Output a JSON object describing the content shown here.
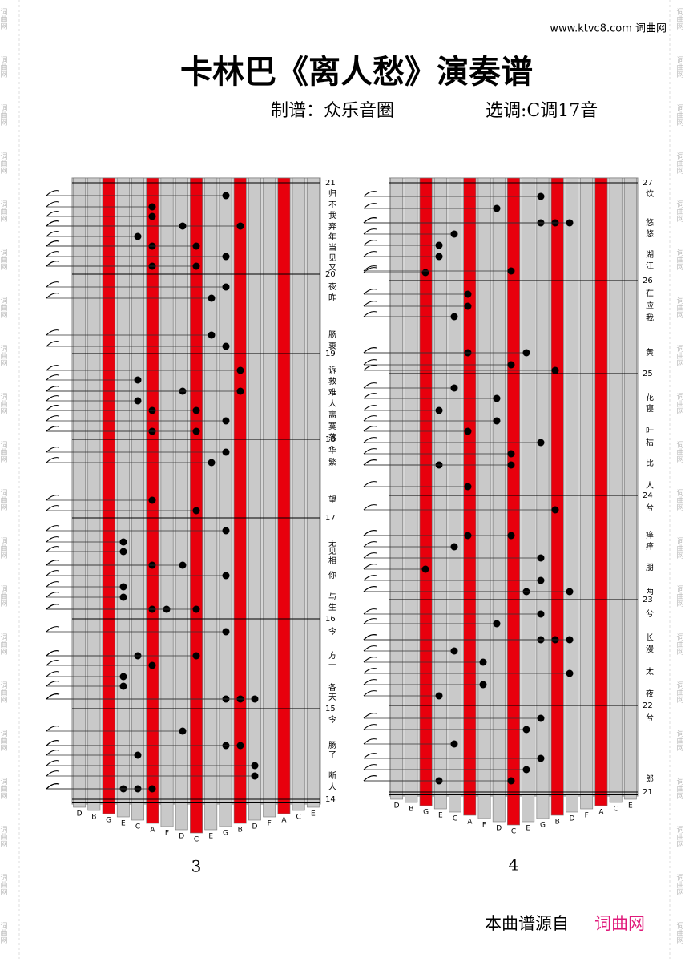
{
  "header": {
    "site": "www.ktvc8.com 词曲网",
    "title": "卡林巴《离人愁》演奏谱",
    "arranger": "制谱：众乐音圈",
    "key": "选调:C调17音"
  },
  "watermark": "词曲网",
  "panels": [
    {
      "keys": [
        "D",
        "B",
        "G",
        "E",
        "C",
        "A",
        "F",
        "D",
        "C",
        "E",
        "G",
        "B",
        "D",
        "F",
        "A",
        "C",
        "E"
      ],
      "measures": [
        "21",
        "20",
        "19",
        "18",
        "17",
        "16",
        "15",
        "14"
      ],
      "lyrics": [
        "归",
        "不",
        "我",
        "弃",
        "年",
        "当",
        "见",
        "又",
        "夜",
        "昨",
        "肠",
        "衷",
        "诉",
        "救",
        "难",
        "人",
        "离",
        "寞",
        "落",
        "华",
        "繁",
        "望",
        "无",
        "见",
        "相",
        "你",
        "与",
        "生",
        "今",
        "方",
        "一",
        "各",
        "天",
        "今",
        "肠",
        "了",
        "断",
        "人"
      ],
      "page": "3"
    },
    {
      "keys": [
        "D",
        "B",
        "G",
        "E",
        "C",
        "A",
        "F",
        "D",
        "C",
        "E",
        "G",
        "B",
        "D",
        "F",
        "A",
        "C",
        "E"
      ],
      "measures": [
        "27",
        "26",
        "25",
        "24",
        "23",
        "22",
        "21"
      ],
      "lyrics": [
        "饮",
        "悠",
        "悠",
        "湖",
        "江",
        "在",
        "应",
        "我",
        "黄",
        "花",
        "寝",
        "叶",
        "枯",
        "比",
        "人",
        "兮",
        "痒",
        "痒",
        "朋",
        "两",
        "兮",
        "长",
        "漫",
        "太",
        "夜",
        "兮",
        "郎"
      ],
      "page": "4"
    }
  ],
  "footer": {
    "source": "本曲谱源自",
    "brand": "词曲网"
  }
}
